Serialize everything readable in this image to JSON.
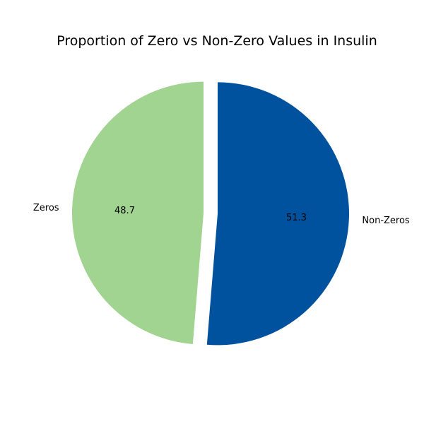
{
  "chart_data": {
    "type": "pie",
    "title": "Proportion of Zero vs Non-Zero Values in Insulin",
    "slices": [
      {
        "label": "Non-Zeros",
        "value": 51.3,
        "pct_label": "51.3",
        "color": "#00519e"
      },
      {
        "label": "Zeros",
        "value": 48.7,
        "pct_label": "48.7",
        "color": "#a1d490"
      }
    ],
    "start_angle_deg": 90,
    "direction": "clockwise",
    "legend": "none"
  }
}
